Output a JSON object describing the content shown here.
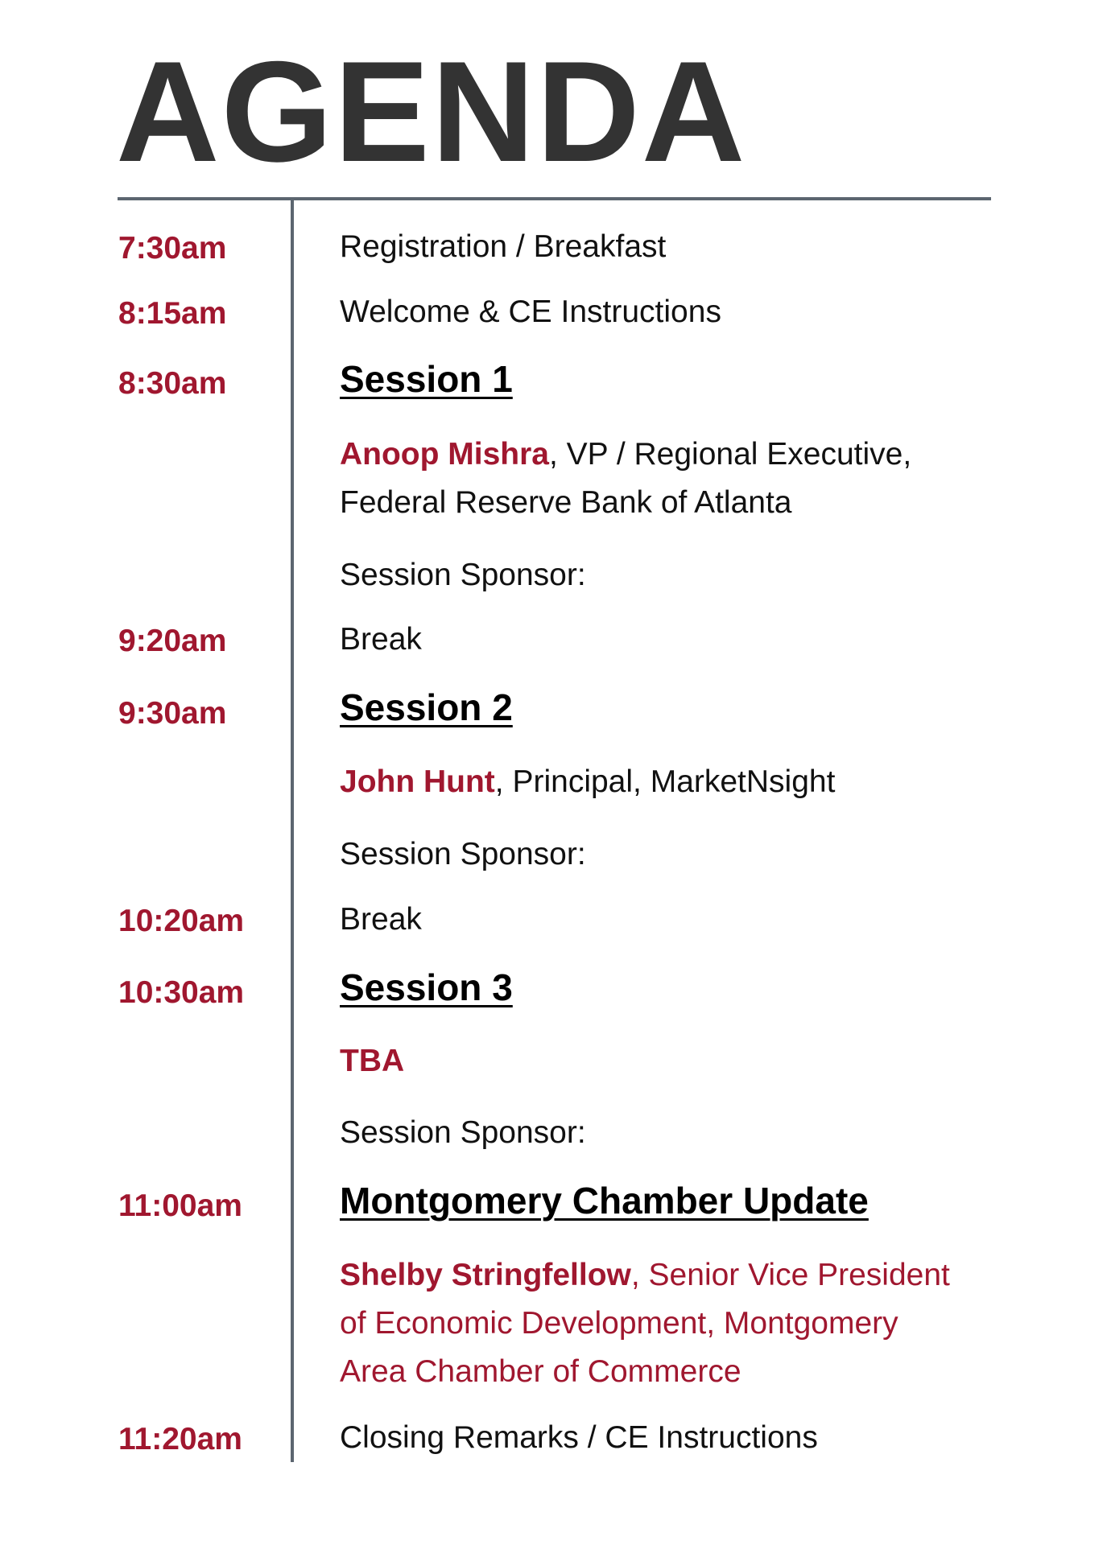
{
  "title": "AGENDA",
  "colors": {
    "accent": "#a0172f",
    "rule": "#5c6670",
    "title": "#333333"
  },
  "items": {
    "registration": {
      "time": "7:30am",
      "text": "Registration / Breakfast"
    },
    "welcome": {
      "time": "8:15am",
      "text": "Welcome & CE Instructions"
    },
    "session1": {
      "time": "8:30am",
      "heading": "Session 1",
      "speaker_name": "Anoop Mishra",
      "speaker_line1": ", VP / Regional Executive,",
      "speaker_line2": "Federal Reserve Bank of Atlanta",
      "sponsor": "Session Sponsor:"
    },
    "break1": {
      "time": "9:20am",
      "text": "Break"
    },
    "session2": {
      "time": "9:30am",
      "heading": "Session 2",
      "speaker_name": "John Hunt",
      "speaker_line1": ", Principal, MarketNsight",
      "sponsor": "Session Sponsor:"
    },
    "break2": {
      "time": "10:20am",
      "text": "Break"
    },
    "session3": {
      "time": "10:30am",
      "heading": "Session 3",
      "speaker_name": "TBA",
      "sponsor": "Session Sponsor:"
    },
    "chamber": {
      "time": "11:00am",
      "heading": "Montgomery Chamber Update",
      "speaker_name": "Shelby Stringfellow",
      "speaker_line1": ", Senior Vice President",
      "speaker_line2": "of Economic Development, Montgomery",
      "speaker_line3": "Area Chamber of Commerce"
    },
    "closing": {
      "time": "11:20am",
      "text": "Closing Remarks / CE Instructions"
    }
  }
}
